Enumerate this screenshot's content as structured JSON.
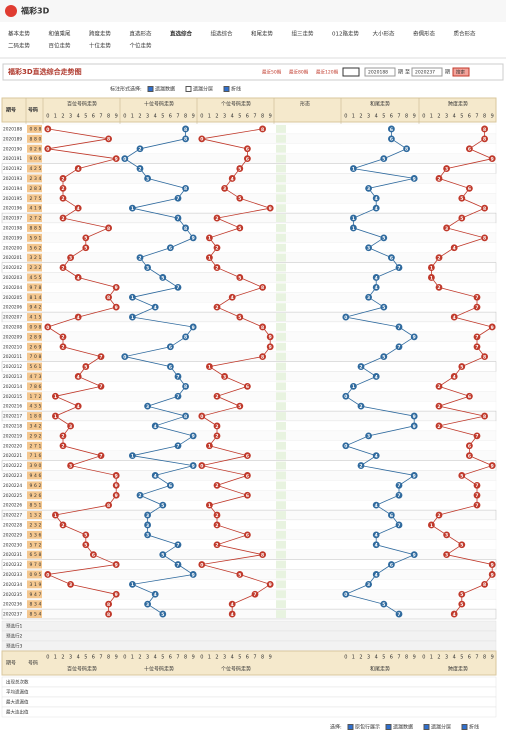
{
  "header": {
    "brand": "福彩3D"
  },
  "nav": [
    [
      "基本走势",
      "和值乘尾",
      "跨度走势",
      "直选形态",
      "直选综合",
      "组选综合",
      "和尾走势",
      "组三走势",
      "012路走势",
      "大小形态",
      "奇偶形态",
      "质合形态"
    ],
    [
      "二码走势",
      "百位走势",
      "十位走势",
      "个位走势"
    ]
  ],
  "title": "福彩3D直选综合走势图",
  "range": {
    "recent": [
      "最近50期",
      "最近80期",
      "最近120期"
    ],
    "from": "2020188",
    "to_word": "至",
    "to": "2020237",
    "period_word": "期",
    "search": "搜索"
  },
  "controls": {
    "label": "标注形式选择:",
    "options": [
      "遗漏数据",
      "遗漏分层",
      "折线"
    ]
  },
  "table": {
    "columns": {
      "period": "期号",
      "number": "号码",
      "hundreds": "百位号码走势",
      "tens": "十位号码走势",
      "units": "个位号码走势",
      "form": "形态",
      "tail": "和尾走势",
      "span": "跨度走势"
    },
    "digits": [
      0,
      1,
      2,
      3,
      4,
      5,
      6,
      7,
      8,
      9
    ],
    "periods": [
      "2020188",
      "2020189",
      "2020190",
      "2020191",
      "2020192",
      "2020193",
      "2020194",
      "2020195",
      "2020196",
      "2020197",
      "2020198",
      "2020199",
      "2020200",
      "2020201",
      "2020202",
      "2020203",
      "2020204",
      "2020205",
      "2020206",
      "2020207",
      "2020208",
      "2020209",
      "2020210",
      "2020211",
      "2020212",
      "2020213",
      "2020214",
      "2020215",
      "2020216",
      "2020217",
      "2020218",
      "2020219",
      "2020220",
      "2020221",
      "2020222",
      "2020223",
      "2020224",
      "2020225",
      "2020226",
      "2020227",
      "2020228",
      "2020229",
      "2020230",
      "2020231",
      "2020232",
      "2020233",
      "2020234",
      "2020235",
      "2020236",
      "2020237"
    ],
    "hundreds": [
      0,
      8,
      0,
      9,
      4,
      2,
      2,
      2,
      4,
      2,
      8,
      5,
      5,
      3,
      2,
      4,
      9,
      8,
      9,
      4,
      0,
      2,
      2,
      7,
      5,
      4,
      7,
      1,
      4,
      1,
      3,
      2,
      2,
      7,
      3,
      9,
      9,
      9,
      8,
      1,
      2,
      5,
      5,
      6,
      9,
      0,
      3,
      9,
      8,
      8
    ],
    "tens": [
      8,
      8,
      2,
      0,
      2,
      3,
      8,
      7,
      1,
      7,
      8,
      9,
      6,
      2,
      3,
      5,
      7,
      1,
      4,
      1,
      9,
      8,
      6,
      0,
      6,
      7,
      8,
      7,
      3,
      8,
      4,
      9,
      7,
      1,
      9,
      4,
      6,
      2,
      5,
      3,
      3,
      3,
      7,
      5,
      7,
      9,
      1,
      4,
      3,
      5
    ],
    "units": [
      8,
      0,
      6,
      6,
      5,
      4,
      3,
      5,
      9,
      2,
      5,
      1,
      2,
      1,
      2,
      5,
      8,
      4,
      2,
      5,
      8,
      9,
      9,
      8,
      1,
      3,
      6,
      2,
      5,
      0,
      2,
      2,
      1,
      6,
      0,
      6,
      2,
      6,
      1,
      2,
      2,
      6,
      2,
      8,
      0,
      5,
      9,
      7,
      4,
      4
    ],
    "tail": [
      6,
      6,
      8,
      5,
      1,
      9,
      3,
      4,
      4,
      1,
      1,
      5,
      3,
      6,
      7,
      4,
      4,
      3,
      5,
      0,
      7,
      9,
      7,
      5,
      2,
      4,
      1,
      0,
      2,
      9,
      9,
      3,
      0,
      4,
      2,
      9,
      7,
      7,
      4,
      6,
      7,
      4,
      4,
      9,
      6,
      4,
      3,
      0,
      5,
      7
    ],
    "span": [
      8,
      8,
      6,
      9,
      3,
      2,
      6,
      5,
      8,
      5,
      3,
      8,
      4,
      2,
      1,
      1,
      2,
      7,
      7,
      4,
      9,
      7,
      7,
      8,
      5,
      4,
      2,
      6,
      2,
      8,
      2,
      7,
      6,
      6,
      9,
      5,
      7,
      7,
      7,
      2,
      1,
      3,
      5,
      3,
      9,
      9,
      8,
      5,
      5,
      4
    ],
    "footer": [
      "预选行1",
      "预选行2",
      "预选行3",
      "出现总次数",
      "平均遗漏值",
      "最大遗漏值",
      "最大连出值"
    ]
  },
  "bottom": {
    "label": "选择:",
    "options": [
      "原包行展示",
      "遗漏数据",
      "遗漏分层",
      "折线"
    ]
  }
}
